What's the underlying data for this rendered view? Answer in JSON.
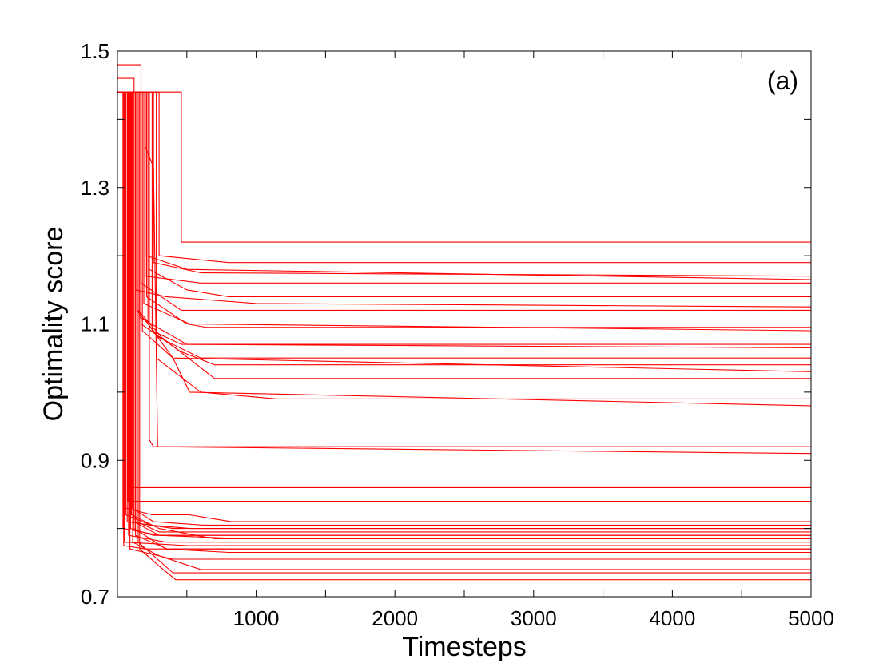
{
  "chart_data": {
    "type": "line",
    "title": "",
    "panel_label": "(a)",
    "xlabel": "Timesteps",
    "ylabel": "Optimality score",
    "xlim": [
      0,
      5000
    ],
    "ylim": [
      0.7,
      1.5
    ],
    "x_ticks": [
      1000,
      2000,
      3000,
      4000,
      5000
    ],
    "x_tick_labels": [
      "1000",
      "2000",
      "3000",
      "4000",
      "5000"
    ],
    "y_ticks": [
      0.7,
      0.9,
      1.1,
      1.3,
      1.5
    ],
    "y_tick_labels": [
      "0.7",
      "0.9",
      "1.1",
      "1.3",
      "1.5"
    ],
    "grid": false,
    "legend": "none",
    "series_color": "#ff0000",
    "series": [
      {
        "points": [
          [
            0,
            1.44
          ],
          [
            60,
            1.44
          ],
          [
            60,
            0.83
          ],
          [
            250,
            0.82
          ],
          [
            520,
            0.82
          ],
          [
            820,
            0.81
          ],
          [
            5000,
            0.81
          ]
        ]
      },
      {
        "points": [
          [
            0,
            1.44
          ],
          [
            40,
            1.44
          ],
          [
            40,
            0.8
          ],
          [
            300,
            0.79
          ],
          [
            600,
            0.79
          ],
          [
            5000,
            0.79
          ]
        ]
      },
      {
        "points": [
          [
            0,
            1.44
          ],
          [
            80,
            1.44
          ],
          [
            80,
            0.79
          ],
          [
            350,
            0.78
          ],
          [
            700,
            0.78
          ],
          [
            5000,
            0.78
          ]
        ]
      },
      {
        "points": [
          [
            0,
            1.44
          ],
          [
            70,
            1.44
          ],
          [
            70,
            0.81
          ],
          [
            400,
            0.8
          ],
          [
            5000,
            0.8
          ]
        ]
      },
      {
        "points": [
          [
            0,
            1.44
          ],
          [
            100,
            1.44
          ],
          [
            100,
            0.82
          ],
          [
            300,
            0.8
          ],
          [
            700,
            0.785
          ],
          [
            5000,
            0.785
          ]
        ]
      },
      {
        "points": [
          [
            0,
            1.44
          ],
          [
            50,
            1.44
          ],
          [
            50,
            0.78
          ],
          [
            500,
            0.775
          ],
          [
            5000,
            0.775
          ]
        ]
      },
      {
        "points": [
          [
            0,
            1.44
          ],
          [
            120,
            1.44
          ],
          [
            120,
            0.8
          ],
          [
            350,
            0.77
          ],
          [
            800,
            0.765
          ],
          [
            5000,
            0.765
          ]
        ]
      },
      {
        "points": [
          [
            0,
            1.44
          ],
          [
            90,
            1.44
          ],
          [
            90,
            0.77
          ],
          [
            400,
            0.755
          ],
          [
            5000,
            0.755
          ]
        ]
      },
      {
        "points": [
          [
            0,
            1.44
          ],
          [
            110,
            1.44
          ],
          [
            110,
            0.78
          ],
          [
            300,
            0.76
          ],
          [
            600,
            0.74
          ],
          [
            5000,
            0.74
          ]
        ]
      },
      {
        "points": [
          [
            0,
            1.44
          ],
          [
            150,
            1.44
          ],
          [
            150,
            0.78
          ],
          [
            400,
            0.735
          ],
          [
            5000,
            0.735
          ]
        ]
      },
      {
        "points": [
          [
            0,
            1.44
          ],
          [
            160,
            1.44
          ],
          [
            160,
            0.77
          ],
          [
            300,
            0.745
          ],
          [
            420,
            0.725
          ],
          [
            5000,
            0.725
          ]
        ]
      },
      {
        "points": [
          [
            0,
            1.44
          ],
          [
            130,
            1.44
          ],
          [
            130,
            0.79
          ],
          [
            360,
            0.77
          ],
          [
            5000,
            0.77
          ]
        ]
      },
      {
        "points": [
          [
            0,
            1.44
          ],
          [
            140,
            1.44
          ],
          [
            140,
            0.81
          ],
          [
            300,
            0.795
          ],
          [
            500,
            0.795
          ],
          [
            5000,
            0.795
          ]
        ]
      },
      {
        "points": [
          [
            0,
            1.44
          ],
          [
            75,
            1.44
          ],
          [
            75,
            0.84
          ],
          [
            200,
            0.84
          ],
          [
            5000,
            0.84
          ]
        ]
      },
      {
        "points": [
          [
            0,
            1.44
          ],
          [
            85,
            1.44
          ],
          [
            85,
            0.86
          ],
          [
            180,
            0.86
          ],
          [
            5000,
            0.86
          ]
        ]
      },
      {
        "points": [
          [
            0,
            1.44
          ],
          [
            60,
            1.44
          ],
          [
            60,
            0.82
          ],
          [
            240,
            0.805
          ],
          [
            520,
            0.8
          ],
          [
            5000,
            0.8
          ]
        ]
      },
      {
        "points": [
          [
            0,
            1.46
          ],
          [
            120,
            1.46
          ],
          [
            120,
            0.81
          ],
          [
            300,
            0.79
          ],
          [
            900,
            0.785
          ],
          [
            5000,
            0.785
          ]
        ]
      },
      {
        "points": [
          [
            0,
            1.44
          ],
          [
            95,
            1.44
          ],
          [
            95,
            0.8
          ],
          [
            260,
            0.79
          ],
          [
            5000,
            0.79
          ]
        ]
      },
      {
        "points": [
          [
            0,
            1.44
          ],
          [
            105,
            1.44
          ],
          [
            105,
            0.83
          ],
          [
            260,
            0.81
          ],
          [
            620,
            0.805
          ],
          [
            5000,
            0.805
          ]
        ]
      },
      {
        "points": [
          [
            0,
            1.44
          ],
          [
            45,
            1.44
          ],
          [
            45,
            0.775
          ],
          [
            200,
            0.77
          ],
          [
            5000,
            0.77
          ]
        ]
      },
      {
        "points": [
          [
            0,
            1.44
          ],
          [
            230,
            1.44
          ],
          [
            230,
            0.93
          ],
          [
            260,
            0.92
          ],
          [
            5000,
            0.92
          ]
        ]
      },
      {
        "points": [
          [
            0,
            1.44
          ],
          [
            200,
            1.44
          ],
          [
            200,
            1.36
          ],
          [
            260,
            1.33
          ],
          [
            290,
            0.92
          ],
          [
            5000,
            0.91
          ]
        ]
      },
      {
        "points": [
          [
            0,
            1.44
          ],
          [
            220,
            1.44
          ],
          [
            220,
            1.1
          ],
          [
            400,
            1.05
          ],
          [
            520,
            1.0
          ],
          [
            5000,
            0.98
          ]
        ]
      },
      {
        "points": [
          [
            0,
            1.44
          ],
          [
            150,
            1.44
          ],
          [
            150,
            1.12
          ],
          [
            320,
            1.08
          ],
          [
            700,
            1.02
          ],
          [
            5000,
            1.02
          ]
        ]
      },
      {
        "points": [
          [
            0,
            1.44
          ],
          [
            180,
            1.44
          ],
          [
            180,
            1.09
          ],
          [
            400,
            1.05
          ],
          [
            5000,
            1.03
          ]
        ]
      },
      {
        "points": [
          [
            0,
            1.48
          ],
          [
            170,
            1.48
          ],
          [
            170,
            1.1
          ],
          [
            450,
            1.06
          ],
          [
            700,
            1.04
          ],
          [
            5000,
            1.04
          ]
        ]
      },
      {
        "points": [
          [
            0,
            1.44
          ],
          [
            140,
            1.44
          ],
          [
            140,
            1.12
          ],
          [
            300,
            1.08
          ],
          [
            600,
            1.05
          ],
          [
            5000,
            1.05
          ]
        ]
      },
      {
        "points": [
          [
            0,
            1.44
          ],
          [
            160,
            1.44
          ],
          [
            160,
            1.11
          ],
          [
            500,
            1.07
          ],
          [
            5000,
            1.065
          ]
        ]
      },
      {
        "points": [
          [
            0,
            1.44
          ],
          [
            250,
            1.44
          ],
          [
            250,
            1.09
          ],
          [
            460,
            1.07
          ],
          [
            5000,
            1.07
          ]
        ]
      },
      {
        "points": [
          [
            0,
            1.44
          ],
          [
            190,
            1.44
          ],
          [
            190,
            1.13
          ],
          [
            520,
            1.1
          ],
          [
            5000,
            1.09
          ]
        ]
      },
      {
        "points": [
          [
            0,
            1.44
          ],
          [
            210,
            1.44
          ],
          [
            210,
            1.14
          ],
          [
            500,
            1.1
          ],
          [
            640,
            1.095
          ],
          [
            5000,
            1.095
          ]
        ]
      },
      {
        "points": [
          [
            0,
            1.44
          ],
          [
            170,
            1.44
          ],
          [
            170,
            1.16
          ],
          [
            460,
            1.12
          ],
          [
            5000,
            1.12
          ]
        ]
      },
      {
        "points": [
          [
            0,
            1.44
          ],
          [
            130,
            1.44
          ],
          [
            130,
            1.15
          ],
          [
            350,
            1.14
          ],
          [
            1000,
            1.13
          ],
          [
            5000,
            1.125
          ]
        ]
      },
      {
        "points": [
          [
            0,
            1.44
          ],
          [
            230,
            1.44
          ],
          [
            230,
            1.18
          ],
          [
            500,
            1.15
          ],
          [
            800,
            1.14
          ],
          [
            5000,
            1.14
          ]
        ]
      },
      {
        "points": [
          [
            0,
            1.44
          ],
          [
            200,
            1.44
          ],
          [
            200,
            1.17
          ],
          [
            600,
            1.16
          ],
          [
            5000,
            1.16
          ]
        ]
      },
      {
        "points": [
          [
            0,
            1.44
          ],
          [
            210,
            1.44
          ],
          [
            210,
            1.2
          ],
          [
            500,
            1.18
          ],
          [
            5000,
            1.165
          ]
        ]
      },
      {
        "points": [
          [
            0,
            1.44
          ],
          [
            260,
            1.44
          ],
          [
            260,
            1.19
          ],
          [
            600,
            1.175
          ],
          [
            5000,
            1.17
          ]
        ]
      },
      {
        "points": [
          [
            0,
            1.44
          ],
          [
            300,
            1.44
          ],
          [
            300,
            1.2
          ],
          [
            800,
            1.19
          ],
          [
            5000,
            1.19
          ]
        ]
      },
      {
        "points": [
          [
            0,
            1.44
          ],
          [
            460,
            1.44
          ],
          [
            460,
            1.22
          ],
          [
            5000,
            1.22
          ]
        ]
      },
      {
        "points": [
          [
            0,
            1.44
          ],
          [
            280,
            1.44
          ],
          [
            280,
            1.05
          ],
          [
            600,
            1.0
          ],
          [
            1150,
            0.99
          ],
          [
            1300,
            0.99
          ],
          [
            5000,
            0.99
          ]
        ]
      }
    ]
  }
}
